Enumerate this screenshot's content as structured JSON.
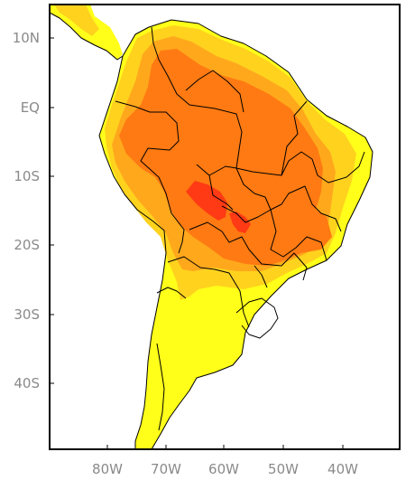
{
  "map": {
    "y_ticks": [
      "10N",
      "EQ",
      "10S",
      "20S",
      "30S",
      "40S"
    ],
    "x_ticks": [
      "80W",
      "70W",
      "60W",
      "50W",
      "40W"
    ],
    "colors": {
      "land_base": "#ffff1a",
      "shade_light": "#ffd21e",
      "shade_mid": "#ffa81c",
      "shade_high": "#ff7a12",
      "shade_peak": "#ff3a14",
      "border": "#000000",
      "frame": "#000000",
      "ocean": "#ffffff"
    }
  }
}
